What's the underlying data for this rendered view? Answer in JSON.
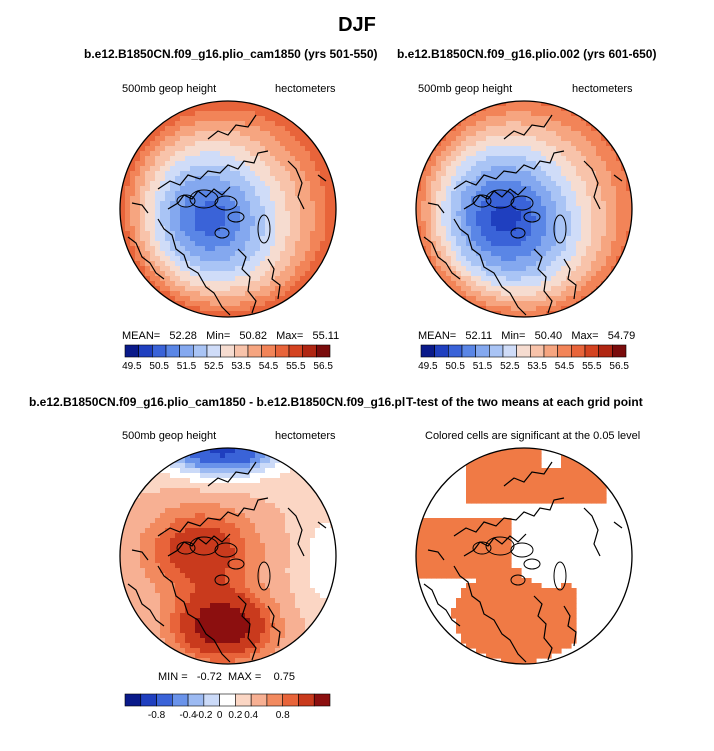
{
  "figure": {
    "title": "DJF"
  },
  "colors": {
    "abs_palette": [
      "#0a1a8a",
      "#1f3fbf",
      "#3a63d8",
      "#5a86e6",
      "#84a8ef",
      "#a9c4f5",
      "#cfdcf8",
      "#f6dcd0",
      "#f8c3aa",
      "#f6a580",
      "#f28458",
      "#e8643a",
      "#d44320",
      "#b02612",
      "#7a0c0c"
    ],
    "diff_palette": [
      "#0a1a8a",
      "#1f3fbf",
      "#3a63d8",
      "#6a93ea",
      "#9cbaf2",
      "#cbdaf8",
      "#ffffff",
      "#fbd6c4",
      "#f7b093",
      "#f28a5f",
      "#e8643a",
      "#c93a1d",
      "#8c0f0f"
    ],
    "significant": "#f07a45",
    "coast": "#000000"
  },
  "chart_data": [
    {
      "type": "heatmap",
      "panel": "top-left",
      "title": "b.e12.B1850CN.f09_g16.plio_cam1850 (yrs 501-550)",
      "left_label": "500mb geop height",
      "right_label": "hectometers",
      "projection": "north polar stereographic",
      "stats": {
        "mean_label": "MEAN=",
        "mean": "52.28",
        "min_label": "Min=",
        "min": "50.82",
        "max_label": "Max=",
        "max": "55.11"
      },
      "colorbar": {
        "labels": [
          "49.5",
          "50.5",
          "51.5",
          "52.5",
          "53.5",
          "54.5",
          "55.5",
          "56.5"
        ],
        "levels": [
          49.5,
          56.5
        ]
      },
      "field": {
        "pole_value": 51.1,
        "rim_value": 55.0,
        "amp": 0.75
      }
    },
    {
      "type": "heatmap",
      "panel": "top-right",
      "title": "b.e12.B1850CN.f09_g16.plio.002 (yrs 601-650)",
      "left_label": "500mb geop height",
      "right_label": "hectometers",
      "projection": "north polar stereographic",
      "stats": {
        "mean_label": "MEAN=",
        "mean": "52.11",
        "min_label": "Min=",
        "min": "50.40",
        "max_label": "Max=",
        "max": "54.79"
      },
      "colorbar": {
        "labels": [
          "49.5",
          "50.5",
          "51.5",
          "52.5",
          "53.5",
          "54.5",
          "55.5",
          "56.5"
        ],
        "levels": [
          49.5,
          56.5
        ]
      },
      "field": {
        "pole_value": 50.7,
        "rim_value": 54.7,
        "amp": 0.8
      }
    },
    {
      "type": "heatmap",
      "panel": "bottom-left",
      "title": "b.e12.B1850CN.f09_g16.plio_cam1850 - b.e12.B1850CN.f09_g16.plio.002",
      "left_label": "500mb geop height",
      "right_label": "hectometers",
      "projection": "north polar stereographic",
      "stats": {
        "min_label": "MIN =",
        "min": "-0.72",
        "max_label": "MAX =",
        "max": "0.75"
      },
      "colorbar": {
        "labels": [
          "-0.8",
          "-0.4",
          "-0.2",
          "0",
          "0.2",
          "0.4",
          "0.8"
        ]
      }
    },
    {
      "type": "heatmap",
      "panel": "bottom-right",
      "title": "T-test of the two means at each grid point",
      "left_label": "Colored cells are significant at the 0.05 level",
      "projection": "north polar stereographic"
    }
  ]
}
